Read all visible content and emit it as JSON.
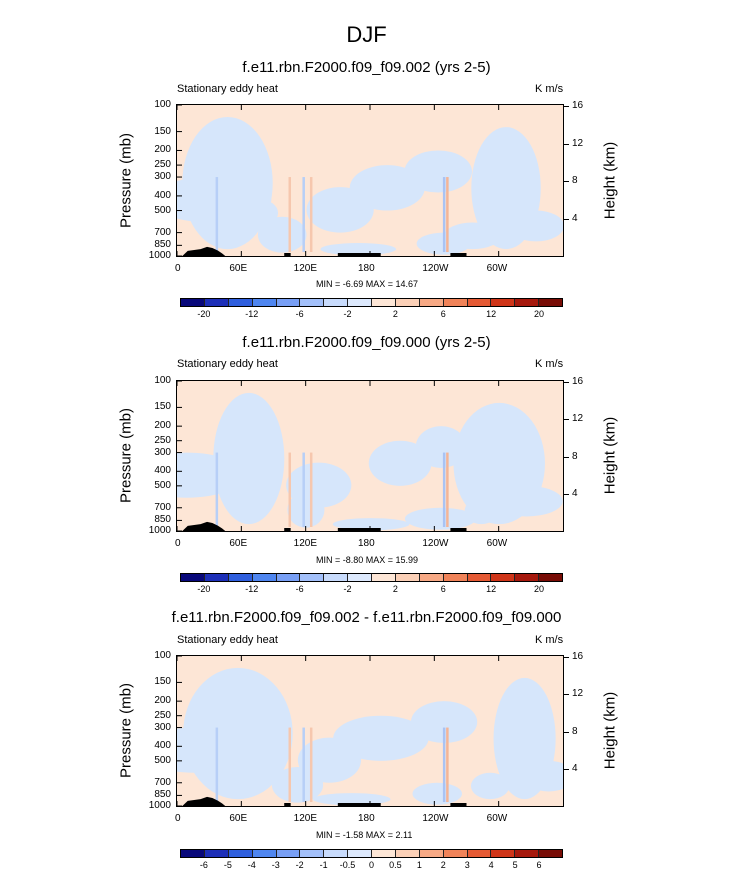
{
  "figure": {
    "title": "DJF"
  },
  "chart_data": [
    {
      "type": "heatmap",
      "title": "f.e11.rbn.F2000.f09_f09.002 (yrs 2-5)",
      "left_label": "Stationary eddy heat",
      "right_label": "K m/s",
      "ylabel": "Pressure (mb)",
      "y2label": "Height (km)",
      "x_ticks": [
        "0",
        "60E",
        "120E",
        "180",
        "120W",
        "60W"
      ],
      "x_tick_values": [
        0,
        60,
        120,
        180,
        240,
        300
      ],
      "xlim": [
        0,
        360
      ],
      "y_ticks": [
        "100",
        "150",
        "200",
        "250",
        "300",
        "400",
        "500",
        "700",
        "850",
        "1000"
      ],
      "y_tick_values": [
        100,
        150,
        200,
        250,
        300,
        400,
        500,
        700,
        850,
        1000
      ],
      "ylim": [
        100,
        1000
      ],
      "y2_ticks": [
        "4",
        "8",
        "12",
        "16"
      ],
      "y2_tick_values": [
        4,
        8,
        12,
        16
      ],
      "min_max_label": "MIN =  -6.69  MAX =  14.67",
      "colorbar_labels": [
        "-20",
        "-12",
        "-6",
        "-2",
        "2",
        "6",
        "12",
        "20"
      ],
      "colorbar_levels": 16
    },
    {
      "type": "heatmap",
      "title": "f.e11.rbn.F2000.f09_f09.000 (yrs 2-5)",
      "left_label": "Stationary eddy heat",
      "right_label": "K m/s",
      "ylabel": "Pressure (mb)",
      "y2label": "Height (km)",
      "x_ticks": [
        "0",
        "60E",
        "120E",
        "180",
        "120W",
        "60W"
      ],
      "x_tick_values": [
        0,
        60,
        120,
        180,
        240,
        300
      ],
      "xlim": [
        0,
        360
      ],
      "y_ticks": [
        "100",
        "150",
        "200",
        "250",
        "300",
        "400",
        "500",
        "700",
        "850",
        "1000"
      ],
      "y_tick_values": [
        100,
        150,
        200,
        250,
        300,
        400,
        500,
        700,
        850,
        1000
      ],
      "ylim": [
        100,
        1000
      ],
      "y2_ticks": [
        "4",
        "8",
        "12",
        "16"
      ],
      "y2_tick_values": [
        4,
        8,
        12,
        16
      ],
      "min_max_label": "MIN =  -8.80  MAX =  15.99",
      "colorbar_labels": [
        "-20",
        "-12",
        "-6",
        "-2",
        "2",
        "6",
        "12",
        "20"
      ],
      "colorbar_levels": 16
    },
    {
      "type": "heatmap",
      "title": "f.e11.rbn.F2000.f09_f09.002 - f.e11.rbn.F2000.f09_f09.000",
      "left_label": "Stationary eddy heat",
      "right_label": "K m/s",
      "ylabel": "Pressure (mb)",
      "y2label": "Height (km)",
      "x_ticks": [
        "0",
        "60E",
        "120E",
        "180",
        "120W",
        "60W"
      ],
      "x_tick_values": [
        0,
        60,
        120,
        180,
        240,
        300
      ],
      "xlim": [
        0,
        360
      ],
      "y_ticks": [
        "100",
        "150",
        "200",
        "250",
        "300",
        "400",
        "500",
        "700",
        "850",
        "1000"
      ],
      "y_tick_values": [
        100,
        150,
        200,
        250,
        300,
        400,
        500,
        700,
        850,
        1000
      ],
      "ylim": [
        100,
        1000
      ],
      "y2_ticks": [
        "4",
        "8",
        "12",
        "16"
      ],
      "y2_tick_values": [
        4,
        8,
        12,
        16
      ],
      "min_max_label": "MIN =  -1.58  MAX =   2.11",
      "colorbar_labels": [
        "-6",
        "-5",
        "-4",
        "-3",
        "-2",
        "-1",
        "-0.5",
        "0",
        "0.5",
        "1",
        "2",
        "3",
        "4",
        "5",
        "6"
      ],
      "colorbar_levels": 16
    }
  ],
  "colors": {
    "colorbar": [
      "#08087a",
      "#1d2fb8",
      "#2f5fde",
      "#4f86f0",
      "#789ff5",
      "#a3c0fa",
      "#c8dbfc",
      "#dde9fd",
      "#fde6d6",
      "#fbd0b7",
      "#f7a985",
      "#f08359",
      "#e55a34",
      "#cf3519",
      "#a6190d",
      "#780c06"
    ],
    "field_neg": "#d6e6fb",
    "field_pos": "#fde6d6",
    "topo": "#000000"
  }
}
